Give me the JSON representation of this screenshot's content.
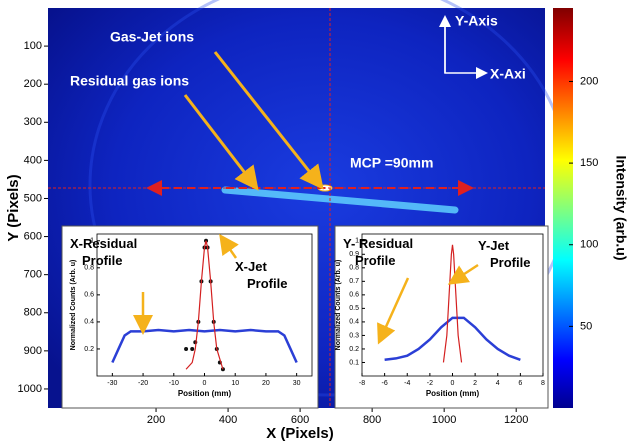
{
  "chart_data": [
    {
      "type": "heatmap",
      "xlabel": "X (Pixels)",
      "ylabel": "Y (Pixels)",
      "colorbar_label": "Intensity (arb.u)",
      "xlim": [
        -100,
        1280
      ],
      "xticks": [
        200,
        400,
        600,
        800,
        1000,
        1200
      ],
      "ylim": [
        0,
        1050
      ],
      "yticks": [
        100,
        200,
        300,
        400,
        500,
        600,
        700,
        800,
        900,
        1000
      ],
      "y_inverted": true,
      "clim": [
        0,
        245
      ],
      "cticks": [
        50,
        100,
        150,
        200
      ],
      "annotations": [
        "Gas-Jet ions",
        "Residual gas ions",
        "Y-Axis",
        "X-Axi",
        "MCP =90mm"
      ]
    },
    {
      "type": "line",
      "xlabel": "Position (mm)",
      "ylabel": "Normalized Counts (Arb. u)",
      "xlim": [
        -35,
        35
      ],
      "xticks": [
        -30,
        -20,
        -10,
        0,
        10,
        20,
        30
      ],
      "ylim": [
        0,
        1.05
      ],
      "yticks": [
        0.2,
        0.4,
        0.6,
        0.8,
        1
      ],
      "annotations": [
        "X-Residual Profile",
        "X-Jet Profile"
      ],
      "series": [
        {
          "color": "#2b3fd6",
          "style": "line",
          "x": [
            -30,
            -28,
            -26,
            -24,
            -20,
            -15,
            -10,
            -5,
            0,
            5,
            10,
            15,
            20,
            24,
            26,
            28,
            30
          ],
          "values": [
            0.1,
            0.2,
            0.3,
            0.33,
            0.33,
            0.34,
            0.33,
            0.34,
            0.33,
            0.34,
            0.33,
            0.34,
            0.33,
            0.33,
            0.3,
            0.2,
            0.1
          ]
        },
        {
          "color": "#111111",
          "style": "markers",
          "x": [
            -6,
            -4,
            -3,
            -2,
            -1,
            0,
            0.5,
            1,
            2,
            3,
            4,
            5,
            6
          ],
          "values": [
            0.2,
            0.2,
            0.25,
            0.4,
            0.7,
            0.95,
            1,
            0.95,
            0.7,
            0.4,
            0.2,
            0.1,
            0.05
          ]
        },
        {
          "color": "#d42020",
          "style": "line",
          "x": [
            -6,
            -4,
            -3,
            -2,
            -1,
            0,
            0.5,
            1,
            2,
            3,
            4,
            6
          ],
          "values": [
            0.05,
            0.1,
            0.2,
            0.4,
            0.7,
            0.95,
            1,
            0.95,
            0.7,
            0.4,
            0.2,
            0.05
          ]
        }
      ]
    },
    {
      "type": "line",
      "xlabel": "Position (mm)",
      "ylabel": "Normalized Counts (Arb. u)",
      "xlim": [
        -8,
        8
      ],
      "xticks": [
        -8,
        -6,
        -4,
        -2,
        0,
        2,
        4,
        6,
        8
      ],
      "ylim": [
        0,
        1.05
      ],
      "yticks": [
        0.1,
        0.2,
        0.3,
        0.4,
        0.5,
        0.6,
        0.7,
        0.8,
        0.9,
        1
      ],
      "annotations": [
        "Y- Residual Profile",
        "Y-Jet Profile"
      ],
      "series": [
        {
          "color": "#2b3fd6",
          "style": "line",
          "x": [
            -6,
            -5,
            -4,
            -3,
            -2,
            -1,
            0,
            1,
            2,
            3,
            4,
            5,
            6
          ],
          "values": [
            0.12,
            0.13,
            0.15,
            0.2,
            0.27,
            0.36,
            0.43,
            0.43,
            0.36,
            0.27,
            0.2,
            0.15,
            0.12
          ]
        },
        {
          "color": "#d42020",
          "style": "line",
          "x": [
            -0.8,
            -0.5,
            -0.3,
            -0.1,
            0,
            0.1,
            0.3,
            0.5,
            0.8
          ],
          "values": [
            0.1,
            0.3,
            0.6,
            0.9,
            0.97,
            0.9,
            0.6,
            0.3,
            0.1
          ]
        }
      ]
    }
  ]
}
